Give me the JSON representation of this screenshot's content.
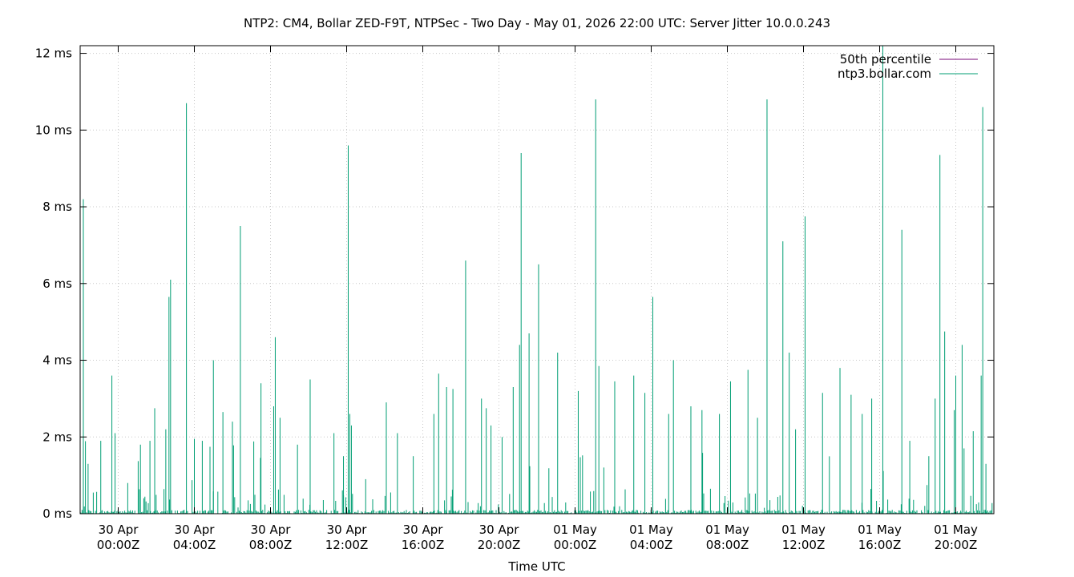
{
  "chart_data": {
    "type": "line",
    "title": "NTP2: CM4, Bollar ZED-F9T, NTPSec - Two Day - May 01, 2026 22:00 UTC: Server Jitter 10.0.0.243",
    "xlabel": "Time UTC",
    "ylabel": "",
    "y_unit": "ms",
    "ylim": [
      0,
      12.2
    ],
    "yticks": [
      {
        "value": 0,
        "label": "0 ms"
      },
      {
        "value": 2,
        "label": "2 ms"
      },
      {
        "value": 4,
        "label": "4 ms"
      },
      {
        "value": 6,
        "label": "6 ms"
      },
      {
        "value": 8,
        "label": "8 ms"
      },
      {
        "value": 10,
        "label": "10 ms"
      },
      {
        "value": 12,
        "label": "12 ms"
      }
    ],
    "xlim": [
      "2026-04-29T22:00Z",
      "2026-05-01T22:00Z"
    ],
    "xticks": [
      {
        "value": "2026-04-30T00:00Z",
        "line1": "30 Apr",
        "line2": "00:00Z"
      },
      {
        "value": "2026-04-30T04:00Z",
        "line1": "30 Apr",
        "line2": "04:00Z"
      },
      {
        "value": "2026-04-30T08:00Z",
        "line1": "30 Apr",
        "line2": "08:00Z"
      },
      {
        "value": "2026-04-30T12:00Z",
        "line1": "30 Apr",
        "line2": "12:00Z"
      },
      {
        "value": "2026-04-30T16:00Z",
        "line1": "30 Apr",
        "line2": "16:00Z"
      },
      {
        "value": "2026-04-30T20:00Z",
        "line1": "30 Apr",
        "line2": "20:00Z"
      },
      {
        "value": "2026-05-01T00:00Z",
        "line1": "01 May",
        "line2": "00:00Z"
      },
      {
        "value": "2026-05-01T04:00Z",
        "line1": "01 May",
        "line2": "04:00Z"
      },
      {
        "value": "2026-05-01T08:00Z",
        "line1": "01 May",
        "line2": "08:00Z"
      },
      {
        "value": "2026-05-01T12:00Z",
        "line1": "01 May",
        "line2": "12:00Z"
      },
      {
        "value": "2026-05-01T16:00Z",
        "line1": "01 May",
        "line2": "16:00Z"
      },
      {
        "value": "2026-05-01T20:00Z",
        "line1": "01 May",
        "line2": "20:00Z"
      }
    ],
    "grid": true,
    "legend_position": "top-right",
    "series": [
      {
        "name": "50th percentile",
        "color": "#7a0a7a",
        "points": []
      },
      {
        "name": "ntp3.bollar.com",
        "color": "#009e73",
        "baseline": 0.1,
        "spikes": [
          {
            "x": "2026-04-29T22:10Z",
            "y": 8.2
          },
          {
            "x": "2026-04-29T22:25Z",
            "y": 1.3
          },
          {
            "x": "2026-04-29T23:05Z",
            "y": 1.9
          },
          {
            "x": "2026-04-29T23:40Z",
            "y": 3.6
          },
          {
            "x": "2026-04-29T23:50Z",
            "y": 2.1
          },
          {
            "x": "2026-04-30T00:30Z",
            "y": 0.8
          },
          {
            "x": "2026-04-30T01:10Z",
            "y": 1.8
          },
          {
            "x": "2026-04-30T01:40Z",
            "y": 1.9
          },
          {
            "x": "2026-04-30T01:55Z",
            "y": 2.75
          },
          {
            "x": "2026-04-30T02:30Z",
            "y": 2.2
          },
          {
            "x": "2026-04-30T02:40Z",
            "y": 5.65
          },
          {
            "x": "2026-04-30T02:45Z",
            "y": 6.1
          },
          {
            "x": "2026-04-30T03:35Z",
            "y": 10.7
          },
          {
            "x": "2026-04-30T04:00Z",
            "y": 1.95
          },
          {
            "x": "2026-04-30T04:25Z",
            "y": 1.9
          },
          {
            "x": "2026-04-30T05:00Z",
            "y": 4.0
          },
          {
            "x": "2026-04-30T05:30Z",
            "y": 2.65
          },
          {
            "x": "2026-04-30T06:00Z",
            "y": 2.4
          },
          {
            "x": "2026-04-30T06:25Z",
            "y": 7.5
          },
          {
            "x": "2026-04-30T07:30Z",
            "y": 3.4
          },
          {
            "x": "2026-04-30T08:10Z",
            "y": 2.8
          },
          {
            "x": "2026-04-30T08:15Z",
            "y": 4.6
          },
          {
            "x": "2026-04-30T08:30Z",
            "y": 2.5
          },
          {
            "x": "2026-04-30T09:25Z",
            "y": 1.8
          },
          {
            "x": "2026-04-30T10:05Z",
            "y": 3.5
          },
          {
            "x": "2026-04-30T11:20Z",
            "y": 2.1
          },
          {
            "x": "2026-04-30T11:50Z",
            "y": 1.5
          },
          {
            "x": "2026-04-30T12:05Z",
            "y": 9.6
          },
          {
            "x": "2026-04-30T12:10Z",
            "y": 2.6
          },
          {
            "x": "2026-04-30T12:15Z",
            "y": 2.3
          },
          {
            "x": "2026-04-30T13:00Z",
            "y": 0.9
          },
          {
            "x": "2026-04-30T14:05Z",
            "y": 2.9
          },
          {
            "x": "2026-04-30T14:40Z",
            "y": 2.1
          },
          {
            "x": "2026-04-30T15:30Z",
            "y": 1.5
          },
          {
            "x": "2026-04-30T16:35Z",
            "y": 2.6
          },
          {
            "x": "2026-04-30T16:50Z",
            "y": 3.65
          },
          {
            "x": "2026-04-30T17:15Z",
            "y": 3.3
          },
          {
            "x": "2026-04-30T17:35Z",
            "y": 3.25
          },
          {
            "x": "2026-04-30T18:15Z",
            "y": 6.6
          },
          {
            "x": "2026-04-30T19:05Z",
            "y": 3.0
          },
          {
            "x": "2026-04-30T19:20Z",
            "y": 2.75
          },
          {
            "x": "2026-04-30T19:35Z",
            "y": 2.3
          },
          {
            "x": "2026-04-30T20:10Z",
            "y": 2.0
          },
          {
            "x": "2026-04-30T20:45Z",
            "y": 3.3
          },
          {
            "x": "2026-04-30T21:05Z",
            "y": 4.4
          },
          {
            "x": "2026-04-30T21:10Z",
            "y": 9.4
          },
          {
            "x": "2026-04-30T21:35Z",
            "y": 4.7
          },
          {
            "x": "2026-04-30T22:05Z",
            "y": 6.5
          },
          {
            "x": "2026-04-30T23:05Z",
            "y": 4.2
          },
          {
            "x": "2026-05-01T00:10Z",
            "y": 3.2
          },
          {
            "x": "2026-05-01T01:05Z",
            "y": 10.8
          },
          {
            "x": "2026-05-01T01:15Z",
            "y": 3.85
          },
          {
            "x": "2026-05-01T02:05Z",
            "y": 3.45
          },
          {
            "x": "2026-05-01T03:05Z",
            "y": 3.6
          },
          {
            "x": "2026-05-01T03:40Z",
            "y": 3.15
          },
          {
            "x": "2026-05-01T04:05Z",
            "y": 5.65
          },
          {
            "x": "2026-05-01T04:55Z",
            "y": 2.6
          },
          {
            "x": "2026-05-01T05:10Z",
            "y": 4.0
          },
          {
            "x": "2026-05-01T06:05Z",
            "y": 2.8
          },
          {
            "x": "2026-05-01T06:40Z",
            "y": 2.7
          },
          {
            "x": "2026-05-01T07:35Z",
            "y": 2.6
          },
          {
            "x": "2026-05-01T08:10Z",
            "y": 3.45
          },
          {
            "x": "2026-05-01T09:05Z",
            "y": 3.75
          },
          {
            "x": "2026-05-01T09:35Z",
            "y": 2.5
          },
          {
            "x": "2026-05-01T10:05Z",
            "y": 10.8
          },
          {
            "x": "2026-05-01T10:55Z",
            "y": 7.1
          },
          {
            "x": "2026-05-01T11:15Z",
            "y": 4.2
          },
          {
            "x": "2026-05-01T11:35Z",
            "y": 2.2
          },
          {
            "x": "2026-05-01T12:05Z",
            "y": 7.75
          },
          {
            "x": "2026-05-01T13:00Z",
            "y": 3.15
          },
          {
            "x": "2026-05-01T13:55Z",
            "y": 3.8
          },
          {
            "x": "2026-05-01T14:30Z",
            "y": 3.1
          },
          {
            "x": "2026-05-01T15:05Z",
            "y": 2.6
          },
          {
            "x": "2026-05-01T15:35Z",
            "y": 3.0
          },
          {
            "x": "2026-05-01T16:10Z",
            "y": 12.2
          },
          {
            "x": "2026-05-01T17:10Z",
            "y": 7.4
          },
          {
            "x": "2026-05-01T17:35Z",
            "y": 1.9
          },
          {
            "x": "2026-05-01T18:35Z",
            "y": 1.5
          },
          {
            "x": "2026-05-01T18:55Z",
            "y": 3.0
          },
          {
            "x": "2026-05-01T19:10Z",
            "y": 9.35
          },
          {
            "x": "2026-05-01T19:25Z",
            "y": 4.75
          },
          {
            "x": "2026-05-01T19:55Z",
            "y": 2.7
          },
          {
            "x": "2026-05-01T20:00Z",
            "y": 3.6
          },
          {
            "x": "2026-05-01T20:20Z",
            "y": 4.4
          },
          {
            "x": "2026-05-01T20:55Z",
            "y": 2.15
          },
          {
            "x": "2026-05-01T21:20Z",
            "y": 3.6
          },
          {
            "x": "2026-05-01T21:25Z",
            "y": 10.6
          },
          {
            "x": "2026-05-01T21:35Z",
            "y": 1.3
          }
        ]
      }
    ]
  }
}
